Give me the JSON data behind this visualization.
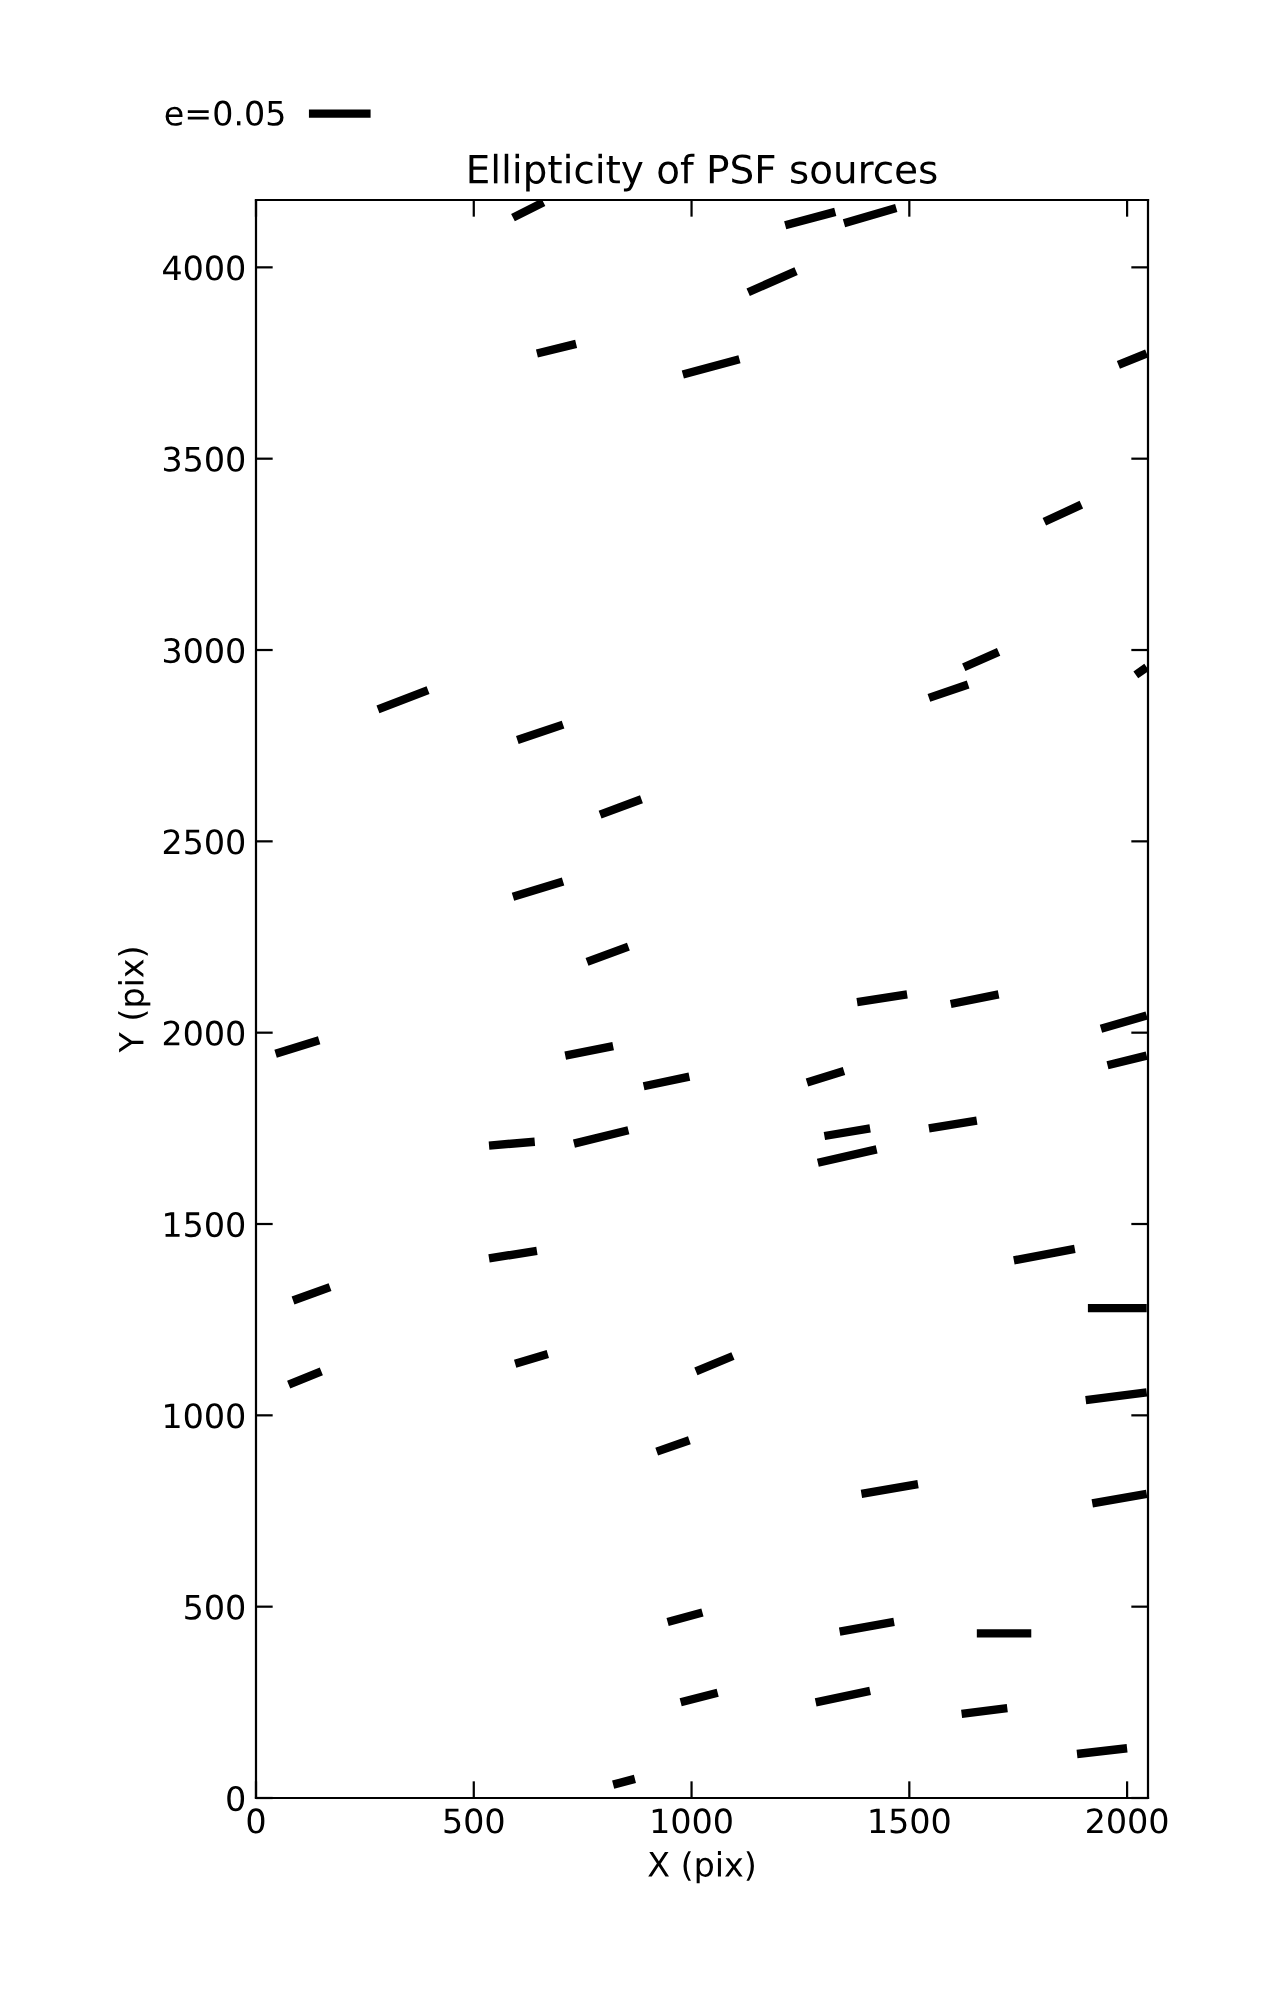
{
  "chart_data": {
    "type": "line",
    "title": "Ellipticity of PSF sources",
    "xlabel": "X (pix)",
    "ylabel": "Y (pix)",
    "xlim": [
      0,
      2048
    ],
    "xticks": [
      0,
      500,
      1000,
      1500,
      2000
    ],
    "ylim": [
      0,
      4176
    ],
    "yticks": [
      0,
      500,
      1000,
      1500,
      2000,
      2500,
      3000,
      3500,
      4000
    ],
    "grid": false,
    "legend": "top left",
    "marker": "none",
    "line_style": "solid",
    "series": [
      {
        "name": "e=0.05",
        "color": "#000000",
        "x": [
          45,
          145,
          null,
          75,
          150,
          null,
          85,
          170,
          null,
          280,
          395,
          null,
          535,
          640,
          null,
          535,
          645,
          null,
          590,
          660,
          null,
          590,
          705,
          null,
          595,
          670,
          null,
          600,
          705,
          null,
          645,
          735,
          null,
          710,
          820,
          null,
          730,
          855,
          null,
          760,
          855,
          null,
          790,
          885,
          null,
          820,
          870,
          null,
          890,
          995,
          null,
          920,
          995,
          null,
          945,
          1025,
          null,
          975,
          1060,
          null,
          980,
          1110,
          null,
          1010,
          1095,
          null,
          1130,
          1240,
          null,
          1215,
          1330,
          null,
          1265,
          1350,
          null,
          1285,
          1410,
          null,
          1290,
          1425,
          null,
          1305,
          1410,
          null,
          1340,
          1465,
          null,
          1350,
          1470,
          null,
          1380,
          1495,
          null,
          1390,
          1520,
          null,
          1545,
          1635,
          null,
          1545,
          1655,
          null,
          1595,
          1705,
          null,
          1620,
          1725,
          null,
          1625,
          1705,
          null,
          1655,
          1780,
          null,
          1740,
          1880,
          null,
          1810,
          1895,
          null,
          1885,
          2000,
          null,
          1905,
          2045,
          null,
          1910,
          2045,
          null,
          1920,
          2045,
          null,
          1940,
          2045,
          null,
          1955,
          2045,
          null,
          1980,
          2045,
          null,
          2020,
          2045
        ],
        "values": [
          1945,
          1980,
          null,
          1080,
          1115,
          null,
          1300,
          1335,
          null,
          2845,
          2895,
          null,
          1705,
          1715,
          null,
          1410,
          1430,
          null,
          4130,
          4170,
          null,
          2355,
          2395,
          null,
          1135,
          1160,
          null,
          2765,
          2805,
          null,
          3775,
          3800,
          null,
          1940,
          1965,
          null,
          1710,
          1745,
          null,
          2185,
          2225,
          null,
          2570,
          2610,
          null,
          35,
          50,
          null,
          1860,
          1885,
          null,
          905,
          935,
          null,
          460,
          485,
          null,
          250,
          275,
          null,
          3720,
          3760,
          null,
          1115,
          1155,
          null,
          3935,
          3990,
          null,
          4110,
          4145,
          null,
          1870,
          1900,
          null,
          250,
          280,
          null,
          1660,
          1695,
          null,
          1730,
          1750,
          null,
          435,
          460,
          null,
          4115,
          4155,
          null,
          2080,
          2100,
          null,
          795,
          820,
          null,
          2875,
          2910,
          null,
          1750,
          1770,
          null,
          2075,
          2100,
          null,
          220,
          235,
          null,
          2955,
          2995,
          null,
          430,
          430,
          null,
          1405,
          1435,
          null,
          3335,
          3380,
          null,
          115,
          130,
          null,
          1040,
          1060,
          null,
          1280,
          1280,
          null,
          770,
          795,
          null,
          2010,
          2045,
          null,
          1915,
          1940,
          null,
          3745,
          3775,
          null,
          2935,
          2955
        ]
      }
    ]
  }
}
